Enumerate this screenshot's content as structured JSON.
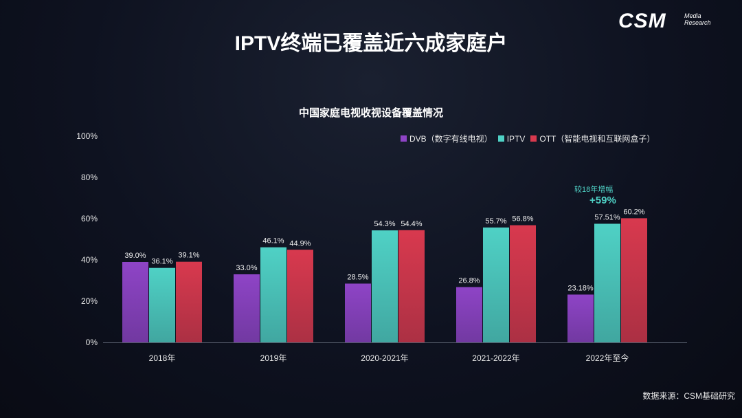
{
  "logo": {
    "main": "CSM",
    "sub_line1": "Media",
    "sub_line2": "Research"
  },
  "title": "IPTV终端已覆盖近六成家庭户",
  "source": "数据来源：CSM基础研究",
  "annotation": {
    "line1": "较18年增幅",
    "line2": "+59%"
  },
  "colors": {
    "DVB": "#8e44c6",
    "IPTV": "#4fd1c5",
    "OTT": "#d8394e"
  },
  "chart_data": {
    "type": "bar",
    "title": "中国家庭电视收视设备覆盖情况",
    "categories": [
      "2018年",
      "2019年",
      "2020-2021年",
      "2021-2022年",
      "2022年至今"
    ],
    "series": [
      {
        "name": "DVB（数字有线电视）",
        "key": "DVB",
        "values": [
          39.0,
          33.0,
          28.5,
          26.8,
          23.18
        ],
        "labels": [
          "39.0%",
          "33.0%",
          "28.5%",
          "26.8%",
          "23.18%"
        ]
      },
      {
        "name": "IPTV",
        "key": "IPTV",
        "values": [
          36.1,
          46.1,
          54.3,
          55.7,
          57.51
        ],
        "labels": [
          "36.1%",
          "46.1%",
          "54.3%",
          "55.7%",
          "57.51%"
        ]
      },
      {
        "name": "OTT（智能电视和互联网盒子）",
        "key": "OTT",
        "values": [
          39.1,
          44.9,
          54.4,
          56.8,
          60.2
        ],
        "labels": [
          "39.1%",
          "44.9%",
          "54.4%",
          "56.8%",
          "60.2%"
        ]
      }
    ],
    "yticks": [
      "0%",
      "20%",
      "40%",
      "60%",
      "80%",
      "100%"
    ],
    "ylim": [
      0,
      100
    ],
    "grid": false,
    "legend": "top-right"
  }
}
